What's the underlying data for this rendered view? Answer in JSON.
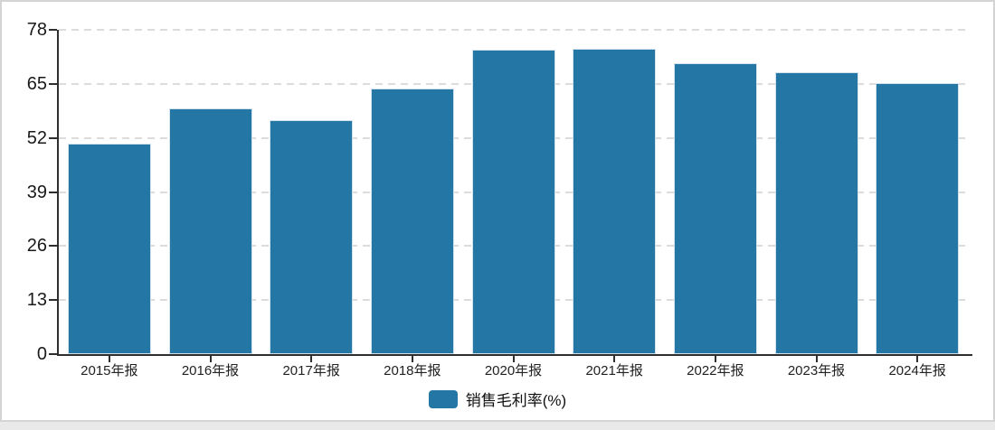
{
  "legend": {
    "label": "销售毛利率(%)"
  },
  "chart_data": {
    "type": "bar",
    "title": "",
    "series_name": "销售毛利率(%)",
    "categories": [
      "2015年报",
      "2016年报",
      "2017年报",
      "2018年报",
      "2020年报",
      "2021年报",
      "2022年报",
      "2023年报",
      "2024年报"
    ],
    "values": [
      50.6,
      59.2,
      56.3,
      63.8,
      73.3,
      73.5,
      69.9,
      67.8,
      65.1
    ],
    "xlabel": "",
    "ylabel": "",
    "ylim": [
      0,
      78
    ],
    "yticks": [
      0,
      13,
      26,
      39,
      52,
      65,
      78
    ],
    "grid": true,
    "gridline_style": "dashed",
    "legend_position": "bottom",
    "colors": {
      "bar": "#2477a4",
      "bar_edge": "#cfe2ee",
      "axis": "#2f2f2f",
      "grid": "#dcdcdc",
      "text": "#1a1a1a",
      "card_background": "#ffffff",
      "card_border": "#d4d4d4",
      "page_background": "#e9e9e9"
    }
  }
}
